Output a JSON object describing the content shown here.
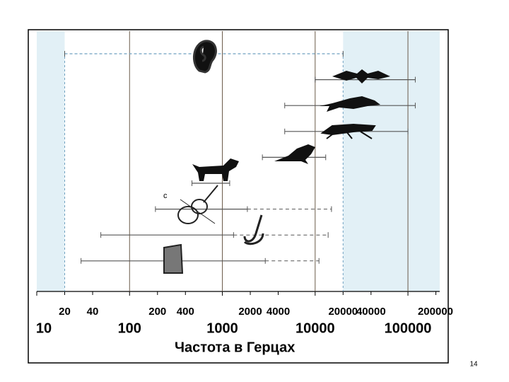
{
  "chart_data": {
    "type": "range",
    "xlabel": "Частота в Герцах",
    "xscale": "log",
    "xlim": [
      10,
      220000
    ],
    "major_ticks": [
      10,
      100,
      1000,
      10000,
      100000
    ],
    "minor_ticks": [
      20,
      40,
      200,
      400,
      2000,
      4000,
      20000,
      40000,
      200000
    ],
    "grid": true,
    "series": [
      {
        "low": 20,
        "high": 20000,
        "dashed": true
      },
      {
        "low": 10000,
        "high": 120000
      },
      {
        "low": 4700,
        "high": 120000
      },
      {
        "low": 4700,
        "high": 100000
      },
      {
        "low": 2700,
        "high": 13000
      },
      {
        "low": 470,
        "high": 1200
      },
      {
        "low": 190,
        "high": 1860,
        "dashed_high": 15000
      },
      {
        "low": 49,
        "high": 1320,
        "dashed_high": 13800
      },
      {
        "low": 30,
        "high": 2900,
        "dashed_high": 11000
      }
    ],
    "annotation": "c",
    "page_number": "14"
  }
}
